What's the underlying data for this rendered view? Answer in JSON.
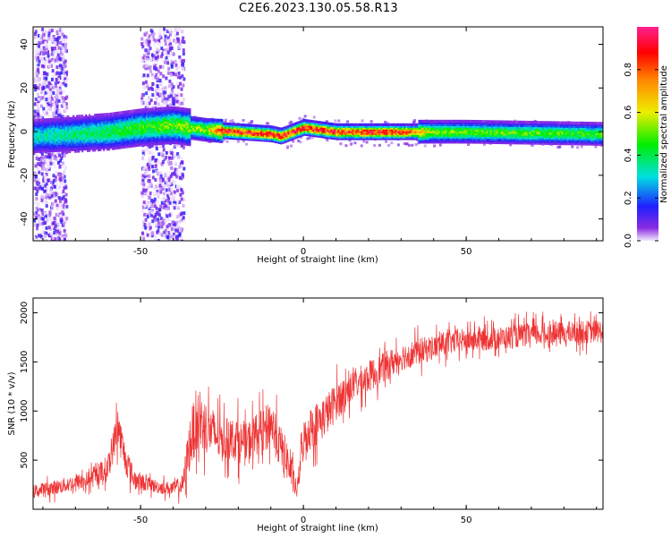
{
  "title": "C2E6.2023.130.05.58.R13",
  "chart_data": [
    {
      "type": "heatmap",
      "xlabel": "Height of straight line (km)",
      "ylabel": "Frequency (Hz)",
      "xlim": [
        -83,
        92
      ],
      "ylim": [
        -50,
        48
      ],
      "xticks": [
        -50,
        0,
        50
      ],
      "yticks": [
        -40,
        -20,
        0,
        20,
        40
      ],
      "colorbar": {
        "label": "Normalized spectral amplitude",
        "range": [
          0,
          1
        ],
        "ticks": [
          "0.0",
          "0.2",
          "0.4",
          "0.6",
          "0.8"
        ]
      },
      "ridge_center_hz": [
        {
          "x": -83,
          "y": -2
        },
        {
          "x": -70,
          "y": -1
        },
        {
          "x": -60,
          "y": 0
        },
        {
          "x": -50,
          "y": 2
        },
        {
          "x": -40,
          "y": 3
        },
        {
          "x": -30,
          "y": 1
        },
        {
          "x": -20,
          "y": 0
        },
        {
          "x": -10,
          "y": -1
        },
        {
          "x": -7,
          "y": -2
        },
        {
          "x": 0,
          "y": 2
        },
        {
          "x": 10,
          "y": 0
        },
        {
          "x": 50,
          "y": 0
        },
        {
          "x": 92,
          "y": -1
        }
      ],
      "ridge_peak_amplitude": [
        {
          "x": -83,
          "y": 0.35
        },
        {
          "x": -60,
          "y": 0.45
        },
        {
          "x": -40,
          "y": 0.55
        },
        {
          "x": -30,
          "y": 0.6
        },
        {
          "x": -25,
          "y": 0.95
        },
        {
          "x": 30,
          "y": 0.95
        },
        {
          "x": 40,
          "y": 0.55
        },
        {
          "x": 92,
          "y": 0.5
        }
      ],
      "noise_bands": [
        [
          -83,
          -73
        ],
        [
          -50,
          -37
        ]
      ]
    },
    {
      "type": "line",
      "xlabel": "Height of straight line (km)",
      "ylabel": "SNR (10 * v/v)",
      "xlim": [
        -83,
        92
      ],
      "ylim": [
        0,
        2150
      ],
      "xticks": [
        -50,
        0,
        50
      ],
      "yticks": [
        500,
        1000,
        1500,
        2000
      ],
      "color": "#ee3333",
      "x": [
        -83,
        -75,
        -70,
        -65,
        -60,
        -58,
        -57,
        -55,
        -52,
        -48,
        -45,
        -40,
        -37,
        -35,
        -33,
        -30,
        -27,
        -25,
        -22,
        -20,
        -18,
        -15,
        -12,
        -10,
        -8,
        -5,
        -3,
        -2,
        0,
        2,
        5,
        8,
        10,
        15,
        20,
        25,
        30,
        35,
        40,
        45,
        50,
        55,
        60,
        65,
        70,
        75,
        80,
        85,
        90,
        92
      ],
      "y": [
        180,
        230,
        270,
        310,
        420,
        700,
        850,
        550,
        300,
        260,
        230,
        210,
        250,
        650,
        900,
        850,
        750,
        700,
        720,
        700,
        650,
        760,
        800,
        900,
        700,
        500,
        280,
        180,
        700,
        820,
        900,
        1000,
        1100,
        1250,
        1350,
        1450,
        1550,
        1600,
        1650,
        1700,
        1720,
        1730,
        1740,
        1760,
        1780,
        1780,
        1790,
        1800,
        1810,
        1810
      ],
      "noise_amplitude": [
        100,
        110,
        120,
        130,
        200,
        250,
        300,
        250,
        150,
        110,
        100,
        100,
        150,
        400,
        450,
        400,
        350,
        320,
        300,
        320,
        300,
        300,
        320,
        350,
        320,
        300,
        200,
        100,
        300,
        320,
        320,
        300,
        280,
        230,
        230,
        220,
        200,
        200,
        180,
        180,
        170,
        170,
        170,
        170,
        170,
        170,
        170,
        170,
        170,
        170
      ]
    }
  ]
}
